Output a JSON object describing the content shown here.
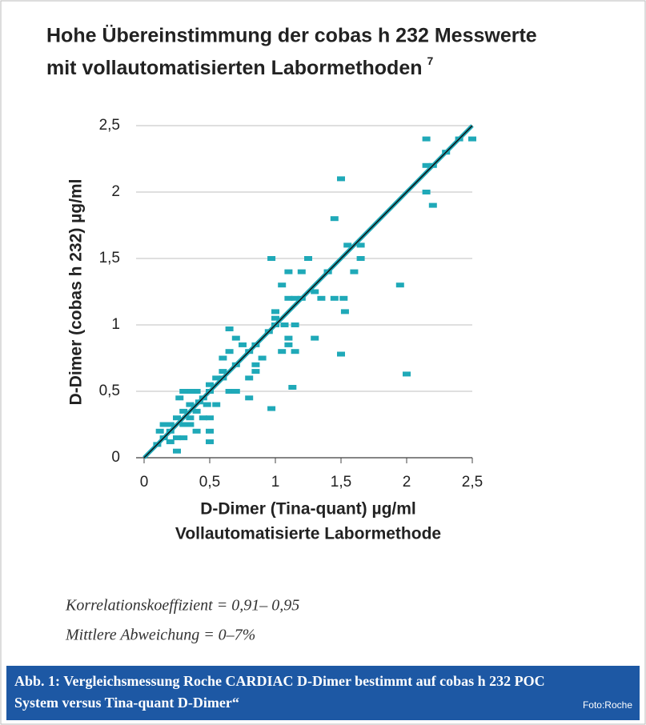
{
  "chart_data": {
    "type": "scatter",
    "title": [
      "Hohe Übereinstimmung der cobas h 232 Messwerte",
      "mit vollautomatisierten Labormethoden"
    ],
    "title_footnote": "7",
    "x_label": [
      "D-Dimer (Tina-quant) µg/ml",
      "Vollautomatisierte Labormethode"
    ],
    "y_label": "D-Dimer (cobas h 232) µg/ml",
    "xlim": [
      0,
      2.5
    ],
    "ylim": [
      0,
      2.5
    ],
    "xticks": [
      0,
      {
        "value": 0.5,
        "label": "0,5"
      },
      1,
      {
        "value": 1.5,
        "label": "1,5"
      },
      2,
      {
        "value": 2.5,
        "label": "2,5"
      }
    ],
    "yticks": [
      0,
      {
        "value": 0.5,
        "label": "0,5"
      },
      1,
      {
        "value": 1.5,
        "label": "1,5"
      },
      2,
      {
        "value": 2.5,
        "label": "2,5"
      }
    ],
    "grid": true,
    "series": [
      {
        "color": "#1fa9b8",
        "x": [
          1.5,
          1.45,
          2.15,
          2.5,
          2.2,
          2.15,
          2.15,
          2.2,
          2.3,
          2.4,
          0.97,
          1.65,
          1.65,
          1.55,
          1.6,
          1.4,
          1.2,
          1.05,
          1.1,
          1.1,
          1.15,
          1.2,
          1.35,
          1.45,
          1.52,
          1.53,
          1.95,
          1.3,
          1.0,
          1.0,
          1.07,
          1.15,
          1.1,
          1.15,
          1.1,
          1.05,
          1.3,
          1.5,
          2.0,
          1.13,
          0.97,
          0.65,
          0.7,
          0.75,
          0.85,
          0.8,
          0.65,
          0.6,
          0.7,
          0.85,
          0.9,
          0.6,
          0.8,
          0.85,
          0.65,
          0.7,
          0.8,
          0.55,
          0.5,
          0.55,
          0.5,
          0.45,
          0.4,
          0.35,
          0.3,
          0.27,
          0.3,
          0.35,
          0.4,
          0.45,
          0.5,
          0.5,
          0.5,
          0.35,
          0.3,
          0.25,
          0.2,
          0.15,
          0.2,
          0.25,
          0.3,
          0.2,
          0.15,
          0.12,
          0.4,
          0.25,
          0.1,
          0.35,
          0.42,
          0.48,
          1.25,
          1.0,
          0.95,
          0.6,
          1.4
        ],
        "values": [
          2.1,
          1.8,
          2.4,
          2.4,
          2.2,
          2.2,
          2.0,
          1.9,
          2.3,
          2.4,
          1.5,
          1.5,
          1.6,
          1.6,
          1.4,
          1.4,
          1.4,
          1.3,
          1.4,
          1.2,
          1.2,
          1.2,
          1.2,
          1.2,
          1.2,
          1.1,
          1.3,
          1.25,
          1.1,
          1.05,
          1.0,
          1.0,
          0.9,
          0.8,
          0.85,
          0.8,
          0.9,
          0.78,
          0.63,
          0.53,
          0.37,
          0.97,
          0.9,
          0.85,
          0.85,
          0.8,
          0.8,
          0.75,
          0.7,
          0.7,
          0.75,
          0.65,
          0.6,
          0.65,
          0.5,
          0.5,
          0.45,
          0.6,
          0.55,
          0.4,
          0.5,
          0.45,
          0.5,
          0.5,
          0.5,
          0.45,
          0.35,
          0.4,
          0.35,
          0.3,
          0.3,
          0.2,
          0.12,
          0.25,
          0.25,
          0.3,
          0.25,
          0.25,
          0.2,
          0.15,
          0.15,
          0.12,
          0.15,
          0.2,
          0.2,
          0.05,
          0.1,
          0.3,
          0.42,
          0.4,
          1.5,
          1.0,
          0.95,
          0.6,
          1.4
        ]
      }
    ]
  },
  "notes": [
    "Korrelationskoeffizient = 0,91– 0,95",
    "Mittlere Abweichung = 0–7%"
  ],
  "caption": {
    "lines": [
      "Abb. 1: Vergleichsmessung Roche CARDIAC D-Dimer bestimmt auf cobas h 232 POC",
      "System versus Tina-quant D-Dimer“"
    ],
    "credit": "Foto:Roche"
  }
}
